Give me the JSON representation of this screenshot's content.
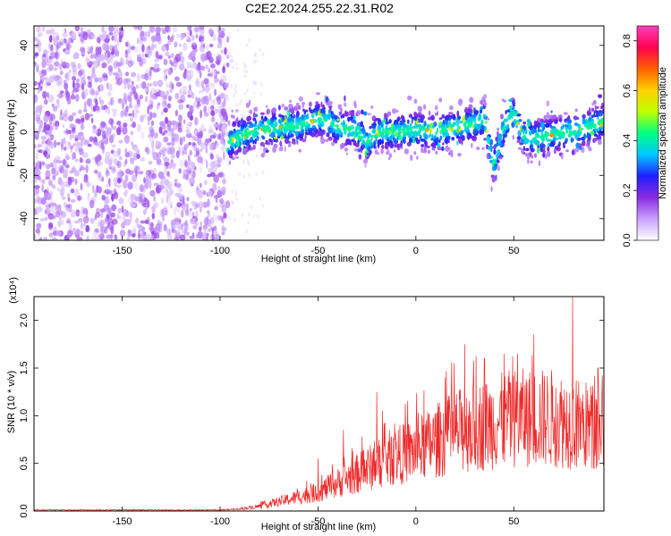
{
  "title": "C2E2.2024.255.22.31.R02",
  "chart_data": [
    {
      "type": "heatmap",
      "xlabel": "Height of straight line (km)",
      "ylabel": "Frequency (Hz)",
      "xlim": [
        -195,
        96
      ],
      "ylim": [
        -50,
        49
      ],
      "xticks": [
        -150,
        -100,
        -50,
        0,
        50
      ],
      "yticks": [
        -40,
        -20,
        0,
        20,
        40
      ],
      "colorbar": {
        "label": "Normalized spectral amplitude",
        "range": [
          0,
          0.86
        ],
        "ticks": [
          "0.0",
          "0.2",
          "0.4",
          "0.6",
          "0.8"
        ],
        "colors": [
          "#ffffff",
          "#c8a0ff",
          "#8a2be2",
          "#2020ff",
          "#00c8ff",
          "#00ff80",
          "#c0ff00",
          "#ffd000",
          "#ff6000",
          "#ff0050",
          "#ff40c0"
        ]
      },
      "noise_region_x": [
        -195,
        -96
      ],
      "signal_band": {
        "x_start": -96,
        "center_freq": [
          [
            -96,
            -5
          ],
          [
            -90,
            -2
          ],
          [
            -80,
            1
          ],
          [
            -70,
            2
          ],
          [
            -60,
            3
          ],
          [
            -50,
            6
          ],
          [
            -45,
            5
          ],
          [
            -40,
            2
          ],
          [
            -30,
            1
          ],
          [
            -25,
            -5
          ],
          [
            -20,
            0
          ],
          [
            -10,
            0
          ],
          [
            0,
            1
          ],
          [
            10,
            0
          ],
          [
            20,
            2
          ],
          [
            30,
            4
          ],
          [
            35,
            6
          ],
          [
            38,
            -10
          ],
          [
            40,
            -15
          ],
          [
            45,
            3
          ],
          [
            50,
            8
          ],
          [
            55,
            -2
          ],
          [
            60,
            -3
          ],
          [
            70,
            -1
          ],
          [
            80,
            0
          ],
          [
            90,
            3
          ],
          [
            96,
            5
          ]
        ],
        "half_width_hz": 8
      }
    },
    {
      "type": "line",
      "xlabel": "Height of straight line (km)",
      "ylabel": "SNR (10 * v/v)",
      "y_multiplier": "(x10⁴)",
      "xlim": [
        -195,
        96
      ],
      "ylim": [
        0,
        2.25
      ],
      "xticks": [
        -150,
        -100,
        -50,
        0,
        50
      ],
      "yticks": [
        "0.0",
        "0.5",
        "1.0",
        "1.5",
        "2.0"
      ],
      "series": [
        {
          "color": "#ee2a2a",
          "envelope_mean": [
            [
              -195,
              0.01
            ],
            [
              -100,
              0.01
            ],
            [
              -90,
              0.02
            ],
            [
              -80,
              0.05
            ],
            [
              -70,
              0.1
            ],
            [
              -60,
              0.15
            ],
            [
              -50,
              0.2
            ],
            [
              -40,
              0.3
            ],
            [
              -30,
              0.4
            ],
            [
              -20,
              0.5
            ],
            [
              -10,
              0.6
            ],
            [
              0,
              0.65
            ],
            [
              10,
              0.75
            ],
            [
              20,
              0.85
            ],
            [
              30,
              0.9
            ],
            [
              40,
              0.95
            ],
            [
              50,
              1.0
            ],
            [
              60,
              1.0
            ],
            [
              70,
              1.0
            ],
            [
              80,
              0.95
            ],
            [
              90,
              0.9
            ],
            [
              96,
              0.9
            ]
          ],
          "peaks": [
            [
              -50,
              0.55
            ],
            [
              -37,
              0.85
            ],
            [
              -20,
              1.25
            ],
            [
              -17,
              1.05
            ],
            [
              -6,
              0.9
            ],
            [
              15,
              1.4
            ],
            [
              25,
              1.75
            ],
            [
              35,
              1.6
            ],
            [
              45,
              1.65
            ],
            [
              52,
              1.65
            ],
            [
              80,
              2.25
            ],
            [
              93,
              1.5
            ]
          ]
        }
      ]
    }
  ]
}
